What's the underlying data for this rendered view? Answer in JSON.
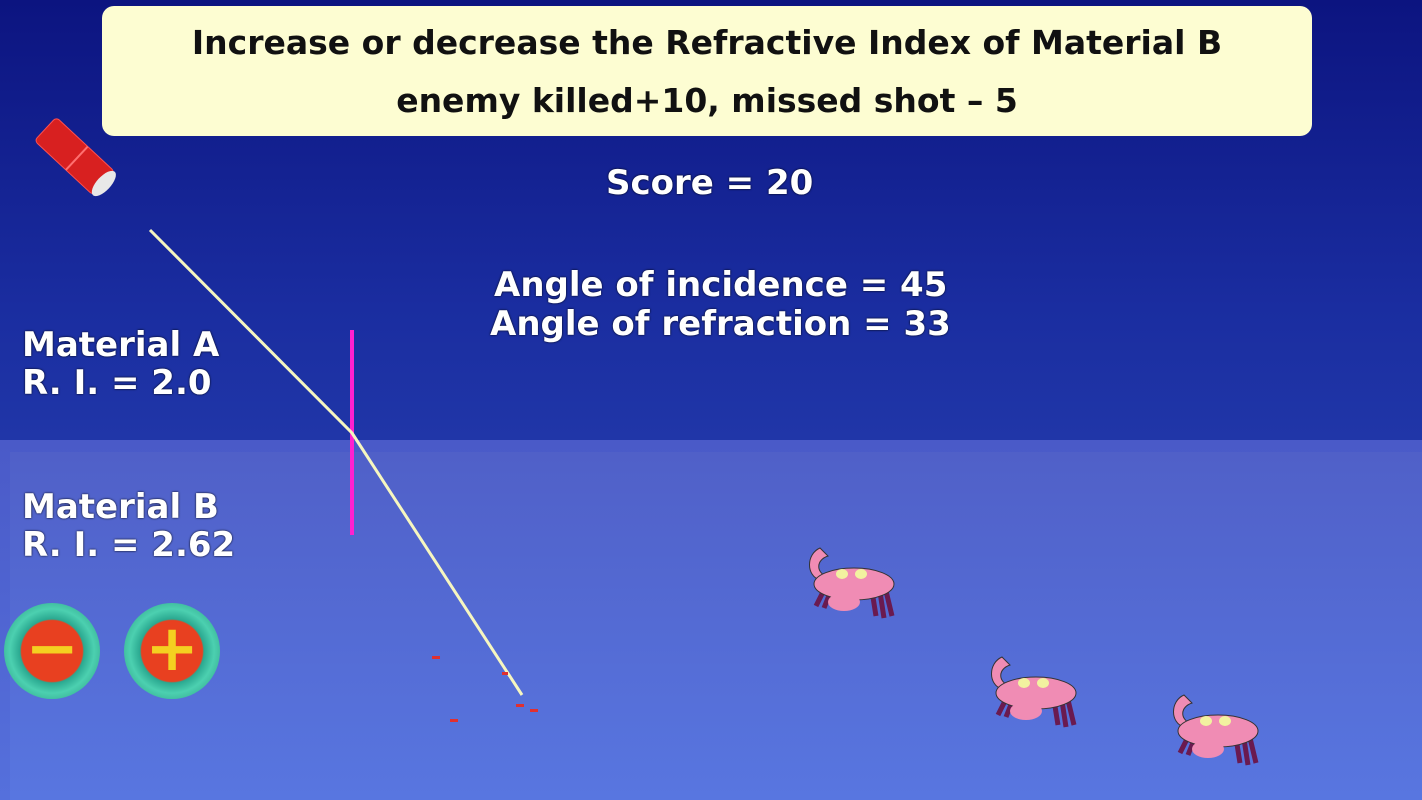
{
  "banner": {
    "line1": "Increase or decrease the Refractive Index of Material B",
    "line2": "enemy killed+10, missed shot – 5"
  },
  "score": {
    "label": "Score = 20",
    "value": 20
  },
  "angles": {
    "incidence": "Angle of incidence = 45",
    "refraction": "Angle of refraction = 33"
  },
  "material_a": {
    "name": "Material A",
    "ri": "R. I. = 2.0"
  },
  "material_b": {
    "name": "Material B",
    "ri": "R. I. = 2.62"
  },
  "controls": {
    "decrease": "−",
    "increase": "+"
  },
  "colors": {
    "banner": "#fdfdd2",
    "beam": "#f6f6c0",
    "normal": "#ff20d0",
    "laser": "#d82020",
    "crab": "#f08cb4"
  },
  "icons": {
    "laser": "laser-pointer-icon",
    "enemy": "crab-icon",
    "decrease": "minus-icon",
    "increase": "plus-icon"
  }
}
